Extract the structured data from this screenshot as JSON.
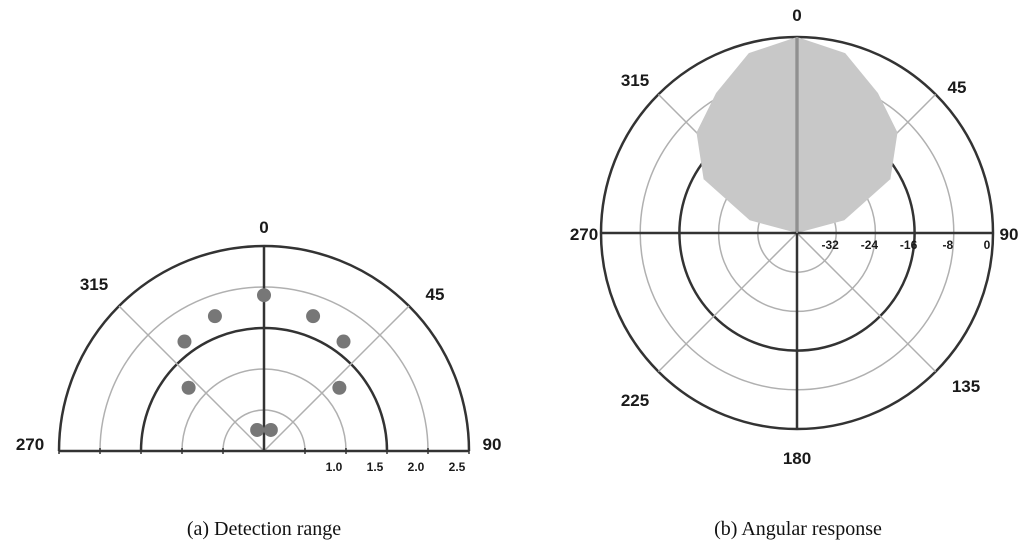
{
  "chart_data": [
    {
      "type": "polar-scatter",
      "caption": "(a) Detection range",
      "angle_labels": [
        "0",
        "45",
        "90",
        "270",
        "315"
      ],
      "radial_ticks": [
        "1.0",
        "1.5",
        "2.0",
        "2.5"
      ],
      "radial_range": [
        0,
        2.5
      ],
      "grid": true,
      "points": [
        {
          "angle": 0,
          "r": 1.9
        },
        {
          "angle": 20,
          "r": 1.75
        },
        {
          "angle": -20,
          "r": 1.75
        },
        {
          "angle": 36,
          "r": 1.65
        },
        {
          "angle": -36,
          "r": 1.65
        },
        {
          "angle": 50,
          "r": 1.2
        },
        {
          "angle": -50,
          "r": 1.2
        },
        {
          "angle": 18,
          "r": 0.27
        },
        {
          "angle": -18,
          "r": 0.27
        }
      ],
      "colors": {
        "grid": "#b0b0b0",
        "axis": "#333333",
        "points": "#777777"
      }
    },
    {
      "type": "polar-area",
      "caption": "(b) Angular response",
      "angle_labels": [
        "0",
        "45",
        "90",
        "135",
        "180",
        "225",
        "270",
        "315"
      ],
      "radial_ticks": [
        "-32",
        "-24",
        "-16",
        "-8",
        "0"
      ],
      "radial_range": [
        -40,
        0
      ],
      "grid": true,
      "response": [
        {
          "angle": -90,
          "value": -40
        },
        {
          "angle": -75,
          "value": -30
        },
        {
          "angle": -60,
          "value": -18
        },
        {
          "angle": -45,
          "value": -11
        },
        {
          "angle": -30,
          "value": -7
        },
        {
          "angle": -15,
          "value": -2
        },
        {
          "angle": 0,
          "value": 0
        },
        {
          "angle": 15,
          "value": -2
        },
        {
          "angle": 30,
          "value": -7
        },
        {
          "angle": 45,
          "value": -11
        },
        {
          "angle": 60,
          "value": -18
        },
        {
          "angle": 75,
          "value": -30
        },
        {
          "angle": 90,
          "value": -40
        }
      ],
      "colors": {
        "grid": "#b0b0b0",
        "axis": "#333333",
        "fill": "#c8c8c8"
      }
    }
  ]
}
